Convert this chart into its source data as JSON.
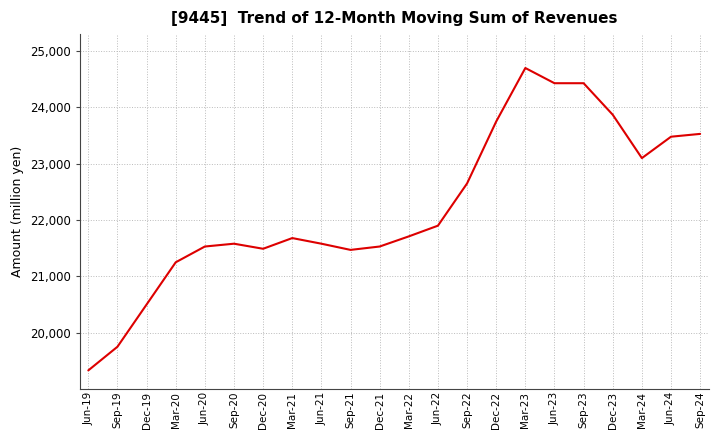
{
  "title": "[9445]  Trend of 12-Month Moving Sum of Revenues",
  "ylabel": "Amount (million yen)",
  "line_color": "#dd0000",
  "background_color": "#ffffff",
  "grid_color": "#bbbbbb",
  "x_labels": [
    "Jun-19",
    "Sep-19",
    "Dec-19",
    "Mar-20",
    "Jun-20",
    "Sep-20",
    "Dec-20",
    "Mar-21",
    "Jun-21",
    "Sep-21",
    "Dec-21",
    "Mar-22",
    "Jun-22",
    "Sep-22",
    "Dec-22",
    "Mar-23",
    "Jun-23",
    "Sep-23",
    "Dec-23",
    "Mar-24",
    "Jun-24",
    "Sep-24"
  ],
  "values": [
    19330,
    19750,
    20500,
    21250,
    21530,
    21580,
    21490,
    21680,
    21580,
    21470,
    21530,
    21710,
    21900,
    22650,
    23750,
    24700,
    24430,
    24430,
    23870,
    23100,
    23480,
    23530
  ],
  "ylim": [
    19000,
    25300
  ],
  "yticks": [
    20000,
    21000,
    22000,
    23000,
    24000,
    25000
  ]
}
